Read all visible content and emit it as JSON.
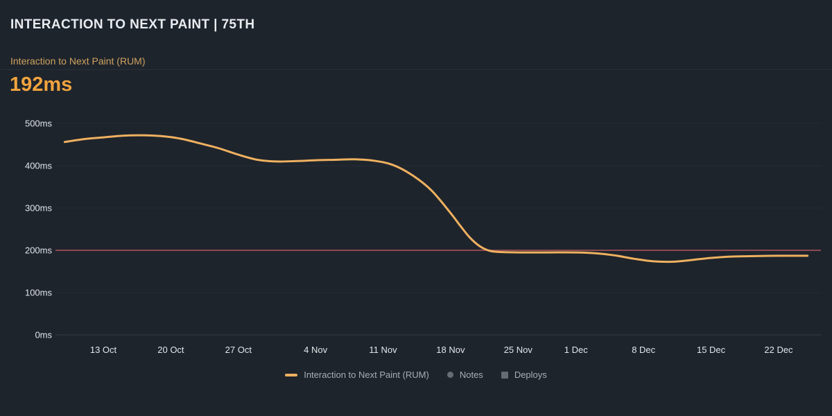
{
  "header": {
    "title": "INTERACTION TO NEXT PAINT | 75TH"
  },
  "metric": {
    "label": "Interaction to Next Paint (RUM)",
    "value": "192ms"
  },
  "colors": {
    "background": "#1e242c",
    "series_line": "#efb160",
    "threshold_line": "#8e4a50",
    "metric_value": "#f1a43e",
    "metric_label": "#cfa35f",
    "tick_text": "#e2e6ea",
    "legend_text": "#a6aeb6",
    "grid": "#272d36",
    "grid_zero": "#333b45"
  },
  "chart_data": {
    "type": "line",
    "title": "Interaction to Next Paint (RUM)",
    "unit": "ms",
    "ylim": [
      0,
      525
    ],
    "grid": true,
    "legend_position": "bottom",
    "y_ticks": [
      500,
      400,
      300,
      200,
      100,
      0
    ],
    "y_tick_labels": [
      "500ms",
      "400ms",
      "300ms",
      "200ms",
      "100ms",
      "0ms"
    ],
    "x_ticks": [
      "13 Oct",
      "20 Oct",
      "27 Oct",
      "4 Nov",
      "11 Nov",
      "18 Nov",
      "25 Nov",
      "1 Dec",
      "8 Dec",
      "15 Dec",
      "22 Dec"
    ],
    "x_range": [
      "9 Oct",
      "25 Dec"
    ],
    "threshold": {
      "value": 200,
      "color": "#8e4a50"
    },
    "series": [
      {
        "name": "Interaction to Next Paint (RUM)",
        "color": "#efb160",
        "points": [
          [
            "9 Oct",
            456
          ],
          [
            "11 Oct",
            463
          ],
          [
            "13 Oct",
            467
          ],
          [
            "15 Oct",
            471
          ],
          [
            "17 Oct",
            472
          ],
          [
            "19 Oct",
            470
          ],
          [
            "21 Oct",
            464
          ],
          [
            "23 Oct",
            453
          ],
          [
            "25 Oct",
            441
          ],
          [
            "27 Oct",
            426
          ],
          [
            "29 Oct",
            414
          ],
          [
            "31 Oct",
            410
          ],
          [
            "2 Nov",
            411
          ],
          [
            "4 Nov",
            413
          ],
          [
            "6 Nov",
            414
          ],
          [
            "8 Nov",
            415
          ],
          [
            "10 Nov",
            412
          ],
          [
            "12 Nov",
            402
          ],
          [
            "14 Nov",
            378
          ],
          [
            "16 Nov",
            342
          ],
          [
            "18 Nov",
            288
          ],
          [
            "19 Nov",
            258
          ],
          [
            "20 Nov",
            230
          ],
          [
            "21 Nov",
            210
          ],
          [
            "22 Nov",
            199
          ],
          [
            "23 Nov",
            196
          ],
          [
            "25 Nov",
            195
          ],
          [
            "28 Nov",
            195
          ],
          [
            "1 Dec",
            195
          ],
          [
            "3 Dec",
            193
          ],
          [
            "5 Dec",
            188
          ],
          [
            "7 Dec",
            180
          ],
          [
            "9 Dec",
            174
          ],
          [
            "11 Dec",
            173
          ],
          [
            "13 Dec",
            177
          ],
          [
            "15 Dec",
            182
          ],
          [
            "17 Dec",
            185
          ],
          [
            "19 Dec",
            186
          ],
          [
            "22 Dec",
            187
          ],
          [
            "25 Dec",
            187
          ]
        ]
      }
    ],
    "legend": [
      {
        "label": "Interaction to Next Paint (RUM)",
        "swatch": "dash",
        "color": "#efb160"
      },
      {
        "label": "Notes",
        "swatch": "circle",
        "color": "#646c76"
      },
      {
        "label": "Deploys",
        "swatch": "square",
        "color": "#646c76"
      }
    ]
  }
}
